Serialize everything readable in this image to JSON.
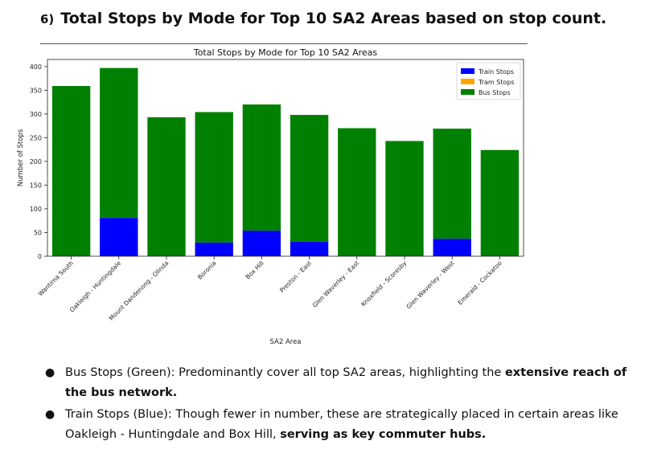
{
  "document": {
    "heading_number": "6)",
    "heading_text": "Total Stops by Mode for Top 10 SA2 Areas based on stop count.",
    "bullets": [
      {
        "pre": "Bus Stops (Green): Predominantly cover all top SA2 areas, highlighting the ",
        "bold": "extensive reach of the bus network.",
        "post": ""
      },
      {
        "pre": "Train Stops (Blue): Though fewer in number, these are strategically placed in certain areas like Oakleigh - Huntingdale and Box Hill, ",
        "bold": "serving as key commuter hubs.",
        "post": ""
      }
    ]
  },
  "chart_data": {
    "type": "bar",
    "stacked": true,
    "title": "Total Stops by Mode for Top 10 SA2 Areas",
    "xlabel": "SA2 Area",
    "ylabel": "Number of Stops",
    "ylim": [
      0,
      415
    ],
    "yticks": [
      0,
      50,
      100,
      150,
      200,
      250,
      300,
      350,
      400
    ],
    "categories": [
      "Wantirna South",
      "Oakleigh - Huntingdale",
      "Mount Dandenong - Olinda",
      "Boronia",
      "Box Hill",
      "Preston - East",
      "Glen Waverley - East",
      "Knoxfield - Scoresby",
      "Glen Waverley - West",
      "Emerald - Cockatoo"
    ],
    "series": [
      {
        "name": "Train Stops",
        "color": "#0000ff",
        "values": [
          0,
          81,
          0,
          29,
          54,
          31,
          0,
          0,
          37,
          0
        ]
      },
      {
        "name": "Tram Stops",
        "color": "#ffa500",
        "values": [
          0,
          0,
          0,
          0,
          0,
          0,
          0,
          0,
          0,
          0
        ]
      },
      {
        "name": "Bus Stops",
        "color": "#008000",
        "values": [
          359,
          316,
          293,
          275,
          266,
          267,
          270,
          243,
          232,
          224
        ]
      }
    ],
    "legend_position": "top-right",
    "grid": false
  }
}
